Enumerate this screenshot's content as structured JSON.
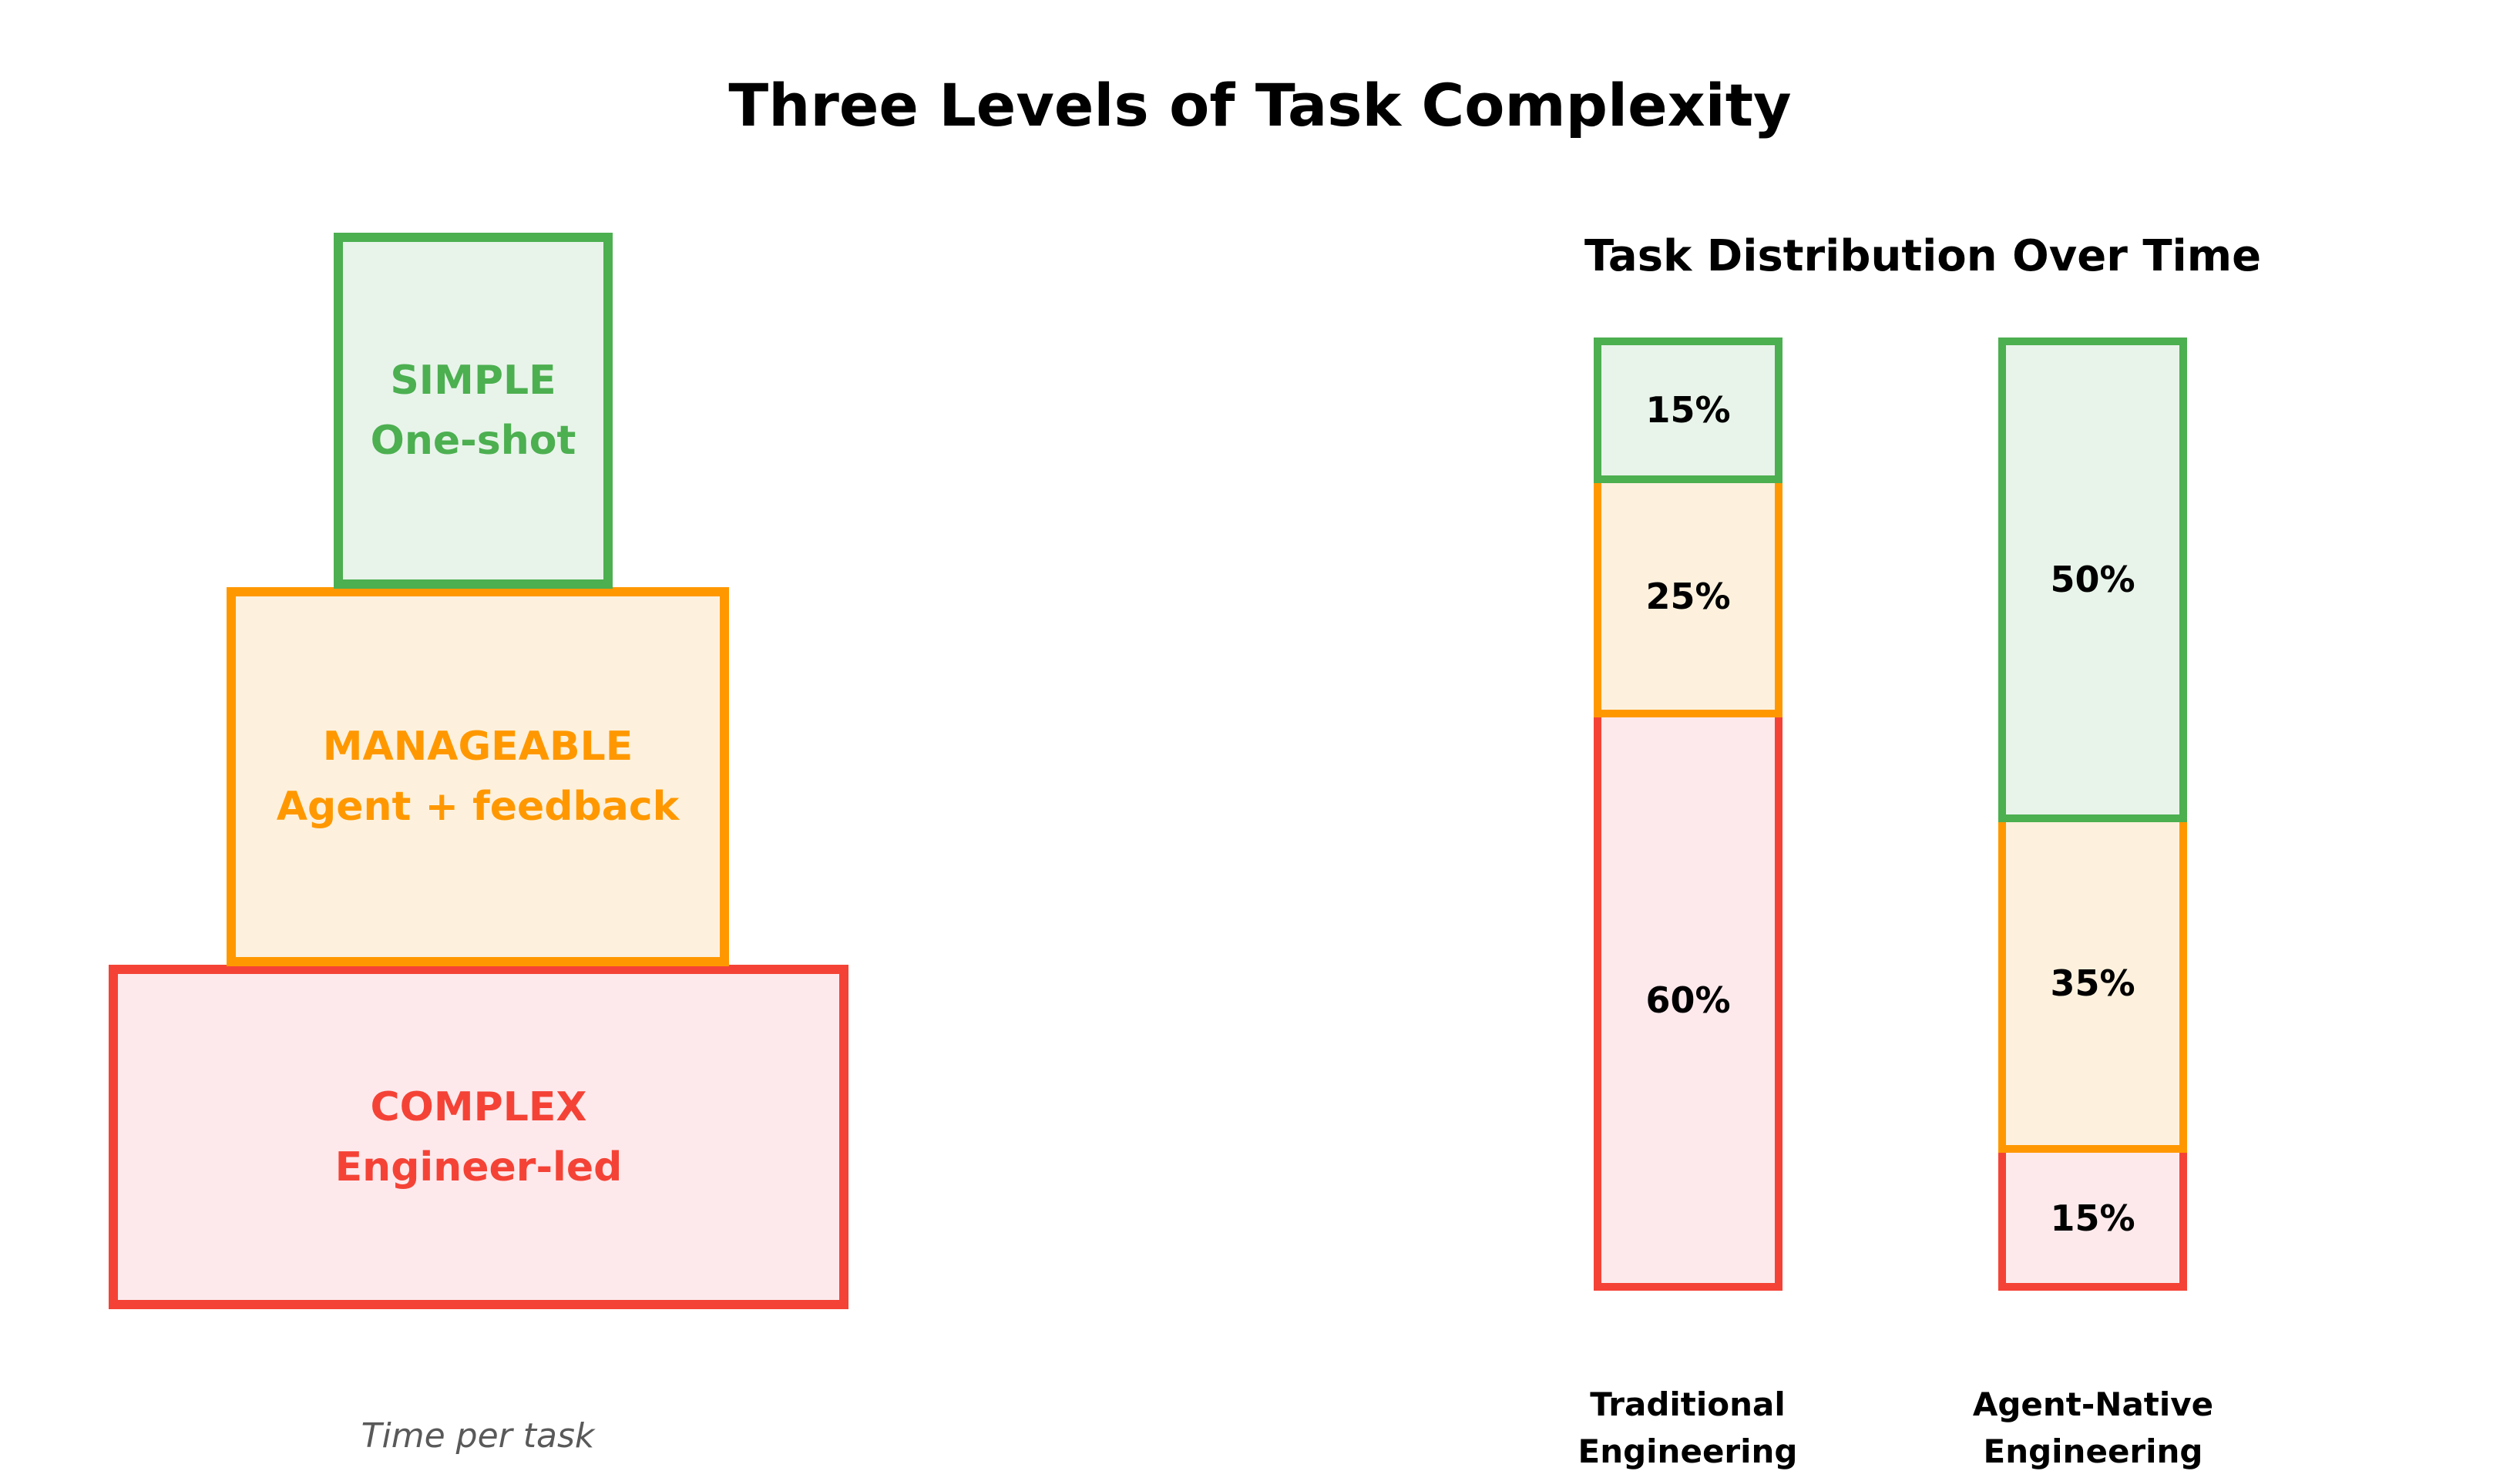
{
  "title": "Three Levels of Task Complexity",
  "pyramid": {
    "caption": "Time per task",
    "levels": [
      {
        "name": "Simple",
        "label": "SIMPLE",
        "sublabel": "One-shot",
        "border_color": "#4caf50",
        "fill_color": "#e8f4ea",
        "text_color": "#4caf50"
      },
      {
        "name": "Manageable",
        "label": "MANAGEABLE",
        "sublabel": "Agent + feedback",
        "border_color": "#ff9800",
        "fill_color": "#fdf1dd",
        "text_color": "#ff9800"
      },
      {
        "name": "Complex",
        "label": "COMPLEX",
        "sublabel": "Engineer-led",
        "border_color": "#f44336",
        "fill_color": "#fde9ec",
        "text_color": "#f44336"
      }
    ]
  },
  "chart_data": {
    "type": "bar",
    "stacked": true,
    "title": "Task Distribution Over Time",
    "unit": "percent",
    "ylim": [
      0,
      100
    ],
    "legend_position": "none",
    "grid": false,
    "categories": [
      "Traditional Engineering",
      "Agent-Native Engineering"
    ],
    "series": [
      {
        "name": "Simple",
        "color": "#4caf50",
        "values": [
          15,
          50
        ]
      },
      {
        "name": "Manageable",
        "color": "#ff9800",
        "values": [
          25,
          35
        ]
      },
      {
        "name": "Complex",
        "color": "#f44336",
        "values": [
          60,
          15
        ]
      }
    ],
    "bars": [
      {
        "category_line1": "Traditional",
        "category_line2": "Engineering",
        "segments": [
          {
            "name": "Simple",
            "value": 15,
            "label": "15%"
          },
          {
            "name": "Manageable",
            "value": 25,
            "label": "25%"
          },
          {
            "name": "Complex",
            "value": 60,
            "label": "60%"
          }
        ]
      },
      {
        "category_line1": "Agent-Native",
        "category_line2": "Engineering",
        "segments": [
          {
            "name": "Simple",
            "value": 50,
            "label": "50%"
          },
          {
            "name": "Manageable",
            "value": 35,
            "label": "35%"
          },
          {
            "name": "Complex",
            "value": 15,
            "label": "15%"
          }
        ]
      }
    ]
  }
}
